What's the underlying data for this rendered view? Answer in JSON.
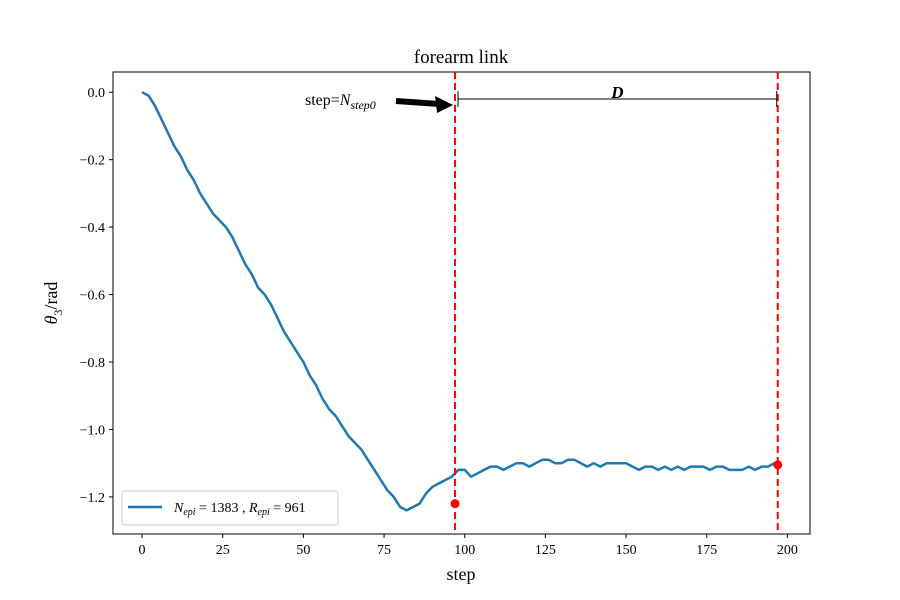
{
  "chart_data": {
    "type": "line",
    "title": "forearm link",
    "xlabel": "step",
    "ylabel": "θ3/rad",
    "xlim": [
      -9,
      207
    ],
    "ylim": [
      -1.31,
      0.06
    ],
    "xticks": [
      0,
      25,
      50,
      75,
      100,
      125,
      150,
      175,
      200
    ],
    "yticks": [
      0.0,
      -0.2,
      -0.4,
      -0.6,
      -0.8,
      -1.0,
      -1.2
    ],
    "grid": false,
    "legend_position": "lower-left",
    "series": [
      {
        "name": "N_epi = 1383 , R_epi = 961",
        "color": "#1f77b4",
        "x": [
          0,
          2,
          4,
          6,
          8,
          10,
          12,
          14,
          16,
          18,
          20,
          22,
          24,
          26,
          28,
          30,
          32,
          34,
          36,
          38,
          40,
          42,
          44,
          46,
          48,
          50,
          52,
          54,
          56,
          58,
          60,
          62,
          64,
          66,
          68,
          70,
          72,
          74,
          76,
          78,
          80,
          82,
          84,
          86,
          88,
          90,
          92,
          94,
          96,
          98,
          100,
          102,
          104,
          106,
          108,
          110,
          112,
          114,
          116,
          118,
          120,
          122,
          124,
          126,
          128,
          130,
          132,
          134,
          136,
          138,
          140,
          142,
          144,
          146,
          148,
          150,
          152,
          154,
          156,
          158,
          160,
          162,
          164,
          166,
          168,
          170,
          172,
          174,
          176,
          178,
          180,
          182,
          184,
          186,
          188,
          190,
          192,
          194,
          196,
          198
        ],
        "y": [
          0.0,
          -0.01,
          -0.04,
          -0.08,
          -0.12,
          -0.16,
          -0.19,
          -0.23,
          -0.26,
          -0.3,
          -0.33,
          -0.36,
          -0.38,
          -0.4,
          -0.43,
          -0.47,
          -0.51,
          -0.54,
          -0.58,
          -0.6,
          -0.63,
          -0.67,
          -0.71,
          -0.74,
          -0.77,
          -0.8,
          -0.84,
          -0.87,
          -0.91,
          -0.94,
          -0.96,
          -0.99,
          -1.02,
          -1.04,
          -1.06,
          -1.09,
          -1.12,
          -1.15,
          -1.18,
          -1.2,
          -1.23,
          -1.24,
          -1.23,
          -1.22,
          -1.19,
          -1.17,
          -1.16,
          -1.15,
          -1.14,
          -1.12,
          -1.12,
          -1.14,
          -1.13,
          -1.12,
          -1.11,
          -1.11,
          -1.12,
          -1.11,
          -1.1,
          -1.1,
          -1.11,
          -1.1,
          -1.09,
          -1.09,
          -1.1,
          -1.1,
          -1.09,
          -1.09,
          -1.1,
          -1.11,
          -1.1,
          -1.11,
          -1.1,
          -1.1,
          -1.1,
          -1.1,
          -1.11,
          -1.12,
          -1.11,
          -1.11,
          -1.12,
          -1.11,
          -1.12,
          -1.11,
          -1.12,
          -1.11,
          -1.11,
          -1.11,
          -1.12,
          -1.11,
          -1.11,
          -1.12,
          -1.12,
          -1.12,
          -1.11,
          -1.12,
          -1.11,
          -1.11,
          -1.1,
          -1.11
        ]
      }
    ],
    "markers": [
      {
        "x": 97,
        "y": -1.22,
        "color": "#ff0000"
      },
      {
        "x": 197,
        "y": -1.105,
        "color": "#ff0000"
      }
    ],
    "vlines": [
      {
        "x": 97,
        "color": "#ff0000",
        "style": "dashed"
      },
      {
        "x": 197,
        "color": "#ff0000",
        "style": "dashed"
      }
    ],
    "annotations": {
      "step_label_prefix": "step=",
      "step_label_var": "N",
      "step_label_sub": "step0",
      "span_label": "D",
      "span_y": -0.02,
      "span_x": [
        97,
        197
      ]
    },
    "legend_parts": {
      "n_var": "N",
      "n_sub": "epi",
      "n_val": " = 1383 , ",
      "r_var": "R",
      "r_sub": "epi",
      "r_val": " = 961"
    },
    "ylabel_parts": {
      "theta": "θ",
      "sub": "3",
      "unit": "/rad"
    }
  }
}
